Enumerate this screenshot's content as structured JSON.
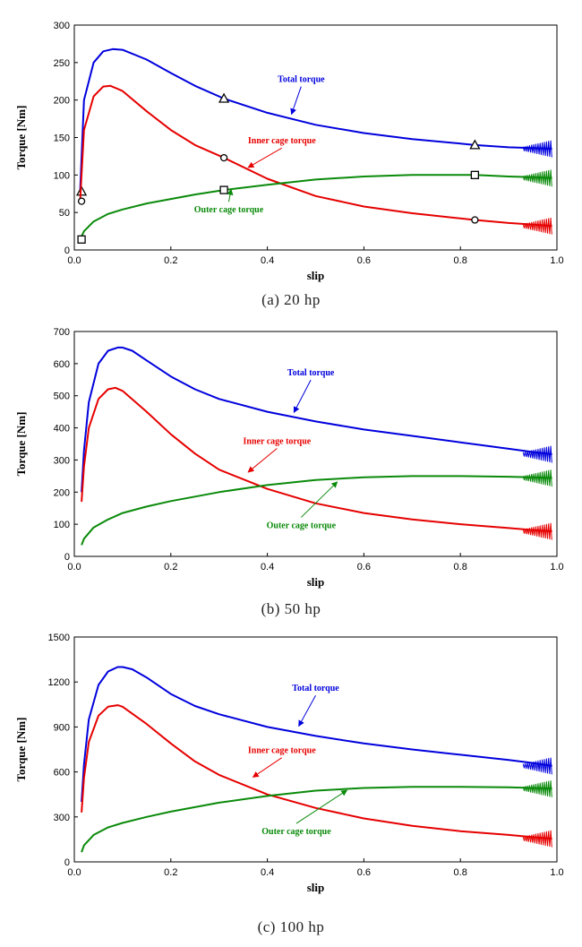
{
  "colors": {
    "total": "#0000dd",
    "inner": "#e60000",
    "outer": "#0a8a0a"
  },
  "chart_data": [
    {
      "type": "line",
      "caption": "(a) 20 hp",
      "xlabel": "slip",
      "ylabel": "Torque [Nm]",
      "xlim": [
        0,
        1
      ],
      "ylim": [
        0,
        300
      ],
      "xticks": [
        0.0,
        0.2,
        0.4,
        0.6,
        0.8,
        1.0
      ],
      "xtick_labels": [
        "0.0",
        "0.2",
        "0.4",
        "0.6",
        "0.8",
        "1.0"
      ],
      "yticks": [
        0,
        50,
        100,
        150,
        200,
        250,
        300
      ],
      "ytick_labels": [
        "0",
        "50",
        "100",
        "150",
        "200",
        "250",
        "300"
      ],
      "series": [
        {
          "key": "total",
          "marker": "triangle",
          "x": [
            0.012,
            0.02,
            0.04,
            0.06,
            0.08,
            0.1,
            0.15,
            0.2,
            0.25,
            0.31,
            0.4,
            0.5,
            0.6,
            0.7,
            0.8,
            0.83,
            0.9,
            0.95,
            0.99
          ],
          "y": [
            78,
            200,
            250,
            265,
            268,
            267,
            254,
            236,
            219,
            202,
            183,
            167,
            156,
            148,
            142,
            140,
            137,
            136,
            135
          ],
          "markers_x": [
            0.015,
            0.31,
            0.83
          ],
          "markers_y": [
            78,
            202,
            140
          ]
        },
        {
          "key": "inner",
          "marker": "circle",
          "x": [
            0.012,
            0.02,
            0.04,
            0.06,
            0.075,
            0.1,
            0.15,
            0.2,
            0.25,
            0.31,
            0.4,
            0.5,
            0.6,
            0.7,
            0.83,
            0.9,
            0.95,
            0.99
          ],
          "y": [
            65,
            160,
            205,
            218,
            219,
            212,
            185,
            160,
            140,
            123,
            95,
            72,
            58,
            49,
            40,
            36,
            34,
            32
          ],
          "markers_x": [
            0.015,
            0.31,
            0.83
          ],
          "markers_y": [
            65,
            123,
            40
          ]
        },
        {
          "key": "outer",
          "marker": "square",
          "x": [
            0.012,
            0.02,
            0.04,
            0.07,
            0.1,
            0.15,
            0.2,
            0.25,
            0.31,
            0.4,
            0.5,
            0.6,
            0.7,
            0.8,
            0.83,
            0.9,
            0.95,
            0.99
          ],
          "y": [
            14,
            25,
            38,
            48,
            54,
            62,
            68,
            74,
            80,
            87,
            94,
            98,
            100,
            100,
            100,
            98,
            97,
            96
          ],
          "markers_x": [
            0.015,
            0.31,
            0.83
          ],
          "markers_y": [
            14,
            80,
            100
          ]
        }
      ],
      "annotations": [
        {
          "key": "total",
          "text": "Total torque",
          "label_x": 0.47,
          "label_y": 224,
          "arrow_x": 0.45,
          "arrow_y": 181
        },
        {
          "key": "inner",
          "text": "Inner cage torque",
          "label_x": 0.43,
          "label_y": 142,
          "arrow_x": 0.36,
          "arrow_y": 110
        },
        {
          "key": "outer",
          "text": "Outer cage torque",
          "label_x": 0.32,
          "label_y": 50,
          "arrow_x": 0.325,
          "arrow_y": 81
        }
      ]
    },
    {
      "type": "line",
      "caption": "(b) 50 hp",
      "xlabel": "slip",
      "ylabel": "Torque [Nm]",
      "xlim": [
        0,
        1
      ],
      "ylim": [
        0,
        700
      ],
      "xticks": [
        0.0,
        0.2,
        0.4,
        0.6,
        0.8,
        1.0
      ],
      "xtick_labels": [
        "0.0",
        "0.2",
        "0.4",
        "0.6",
        "0.8",
        "1.0"
      ],
      "yticks": [
        0,
        100,
        200,
        300,
        400,
        500,
        600,
        700
      ],
      "ytick_labels": [
        "0",
        "100",
        "200",
        "300",
        "400",
        "500",
        "600",
        "700"
      ],
      "series": [
        {
          "key": "total",
          "x": [
            0.015,
            0.02,
            0.03,
            0.05,
            0.07,
            0.09,
            0.1,
            0.12,
            0.15,
            0.2,
            0.25,
            0.3,
            0.4,
            0.5,
            0.6,
            0.7,
            0.8,
            0.9,
            0.95,
            0.99
          ],
          "y": [
            200,
            330,
            480,
            600,
            640,
            650,
            650,
            640,
            610,
            560,
            520,
            490,
            450,
            420,
            395,
            375,
            355,
            335,
            325,
            318
          ]
        },
        {
          "key": "inner",
          "x": [
            0.015,
            0.02,
            0.03,
            0.05,
            0.07,
            0.085,
            0.1,
            0.15,
            0.2,
            0.25,
            0.3,
            0.4,
            0.5,
            0.6,
            0.7,
            0.8,
            0.9,
            0.95,
            0.99
          ],
          "y": [
            170,
            280,
            400,
            490,
            520,
            525,
            515,
            450,
            380,
            320,
            270,
            210,
            165,
            135,
            115,
            100,
            88,
            82,
            78
          ]
        },
        {
          "key": "outer",
          "x": [
            0.015,
            0.02,
            0.04,
            0.07,
            0.1,
            0.15,
            0.2,
            0.25,
            0.3,
            0.4,
            0.5,
            0.6,
            0.7,
            0.8,
            0.9,
            0.95,
            0.99
          ],
          "y": [
            35,
            55,
            90,
            115,
            135,
            155,
            172,
            186,
            200,
            222,
            238,
            246,
            250,
            250,
            248,
            246,
            244
          ]
        }
      ],
      "annotations": [
        {
          "key": "total",
          "text": "Total torque",
          "label_x": 0.49,
          "label_y": 563,
          "arrow_x": 0.455,
          "arrow_y": 448
        },
        {
          "key": "inner",
          "text": "Inner cage torque",
          "label_x": 0.42,
          "label_y": 350,
          "arrow_x": 0.36,
          "arrow_y": 262
        },
        {
          "key": "outer",
          "text": "Outer cage torque",
          "label_x": 0.47,
          "label_y": 88,
          "arrow_x": 0.545,
          "arrow_y": 232
        }
      ]
    },
    {
      "type": "line",
      "caption": "(c) 100 hp",
      "xlabel": "slip",
      "ylabel": "Torque [Nm]",
      "xlim": [
        0,
        1
      ],
      "ylim": [
        0,
        1500
      ],
      "xticks": [
        0.0,
        0.2,
        0.4,
        0.6,
        0.8,
        1.0
      ],
      "xtick_labels": [
        "0.0",
        "0.2",
        "0.4",
        "0.6",
        "0.8",
        "1.0"
      ],
      "yticks": [
        0,
        300,
        600,
        900,
        1200,
        1500
      ],
      "ytick_labels": [
        "0",
        "300",
        "600",
        "900",
        "1200",
        "1500"
      ],
      "series": [
        {
          "key": "total",
          "x": [
            0.015,
            0.02,
            0.03,
            0.05,
            0.07,
            0.09,
            0.1,
            0.12,
            0.15,
            0.2,
            0.25,
            0.3,
            0.4,
            0.5,
            0.6,
            0.7,
            0.8,
            0.9,
            0.95,
            0.99
          ],
          "y": [
            400,
            650,
            950,
            1180,
            1270,
            1300,
            1300,
            1285,
            1230,
            1120,
            1040,
            985,
            900,
            840,
            790,
            750,
            715,
            680,
            660,
            640
          ]
        },
        {
          "key": "inner",
          "x": [
            0.015,
            0.02,
            0.03,
            0.05,
            0.07,
            0.09,
            0.1,
            0.15,
            0.2,
            0.25,
            0.3,
            0.4,
            0.5,
            0.6,
            0.7,
            0.8,
            0.9,
            0.95,
            0.99
          ],
          "y": [
            330,
            560,
            800,
            975,
            1035,
            1045,
            1035,
            920,
            790,
            670,
            580,
            450,
            360,
            290,
            240,
            205,
            180,
            165,
            155
          ]
        },
        {
          "key": "outer",
          "x": [
            0.015,
            0.02,
            0.04,
            0.07,
            0.1,
            0.15,
            0.2,
            0.25,
            0.3,
            0.4,
            0.5,
            0.6,
            0.7,
            0.8,
            0.9,
            0.95,
            0.99
          ],
          "y": [
            65,
            110,
            180,
            230,
            260,
            300,
            335,
            365,
            395,
            440,
            475,
            493,
            500,
            500,
            497,
            493,
            488
          ]
        }
      ],
      "annotations": [
        {
          "key": "total",
          "text": "Total torque",
          "label_x": 0.5,
          "label_y": 1140,
          "arrow_x": 0.465,
          "arrow_y": 905
        },
        {
          "key": "inner",
          "text": "Inner cage torque",
          "label_x": 0.43,
          "label_y": 725,
          "arrow_x": 0.37,
          "arrow_y": 565
        },
        {
          "key": "outer",
          "text": "Outer cage torque",
          "label_x": 0.46,
          "label_y": 185,
          "arrow_x": 0.565,
          "arrow_y": 478
        }
      ]
    }
  ]
}
